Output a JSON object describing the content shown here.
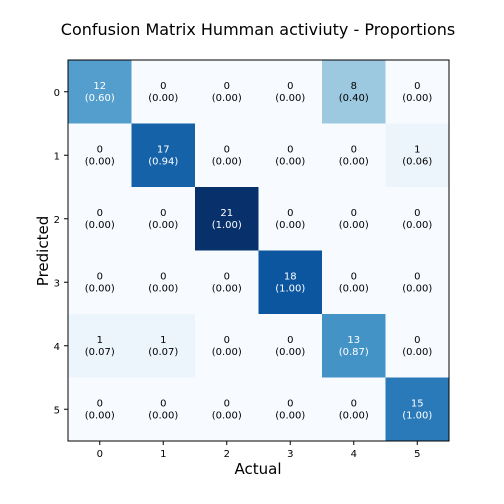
{
  "chart_data": {
    "type": "heatmap",
    "title": "Confusion Matrix Humman activiuty - Proportions",
    "xlabel": "Actual",
    "ylabel": "Predicted",
    "x_categories": [
      "0",
      "1",
      "2",
      "3",
      "4",
      "5"
    ],
    "y_categories": [
      "0",
      "1",
      "2",
      "3",
      "4",
      "5"
    ],
    "colormap": "Blues",
    "counts": [
      [
        12,
        0,
        0,
        0,
        8,
        0
      ],
      [
        0,
        17,
        0,
        0,
        0,
        1
      ],
      [
        0,
        0,
        21,
        0,
        0,
        0
      ],
      [
        0,
        0,
        0,
        18,
        0,
        0
      ],
      [
        1,
        1,
        0,
        0,
        13,
        0
      ],
      [
        0,
        0,
        0,
        0,
        0,
        15
      ]
    ],
    "proportions": [
      [
        "(0.60)",
        "(0.00)",
        "(0.00)",
        "(0.00)",
        "(0.40)",
        "(0.00)"
      ],
      [
        "(0.00)",
        "(0.94)",
        "(0.00)",
        "(0.00)",
        "(0.00)",
        "(0.06)"
      ],
      [
        "(0.00)",
        "(0.00)",
        "(1.00)",
        "(0.00)",
        "(0.00)",
        "(0.00)"
      ],
      [
        "(0.00)",
        "(0.00)",
        "(0.00)",
        "(1.00)",
        "(0.00)",
        "(0.00)"
      ],
      [
        "(0.07)",
        "(0.07)",
        "(0.00)",
        "(0.00)",
        "(0.87)",
        "(0.00)"
      ],
      [
        "(0.00)",
        "(0.00)",
        "(0.00)",
        "(0.00)",
        "(0.00)",
        "(1.00)"
      ]
    ],
    "grid": false,
    "legend": "none"
  }
}
